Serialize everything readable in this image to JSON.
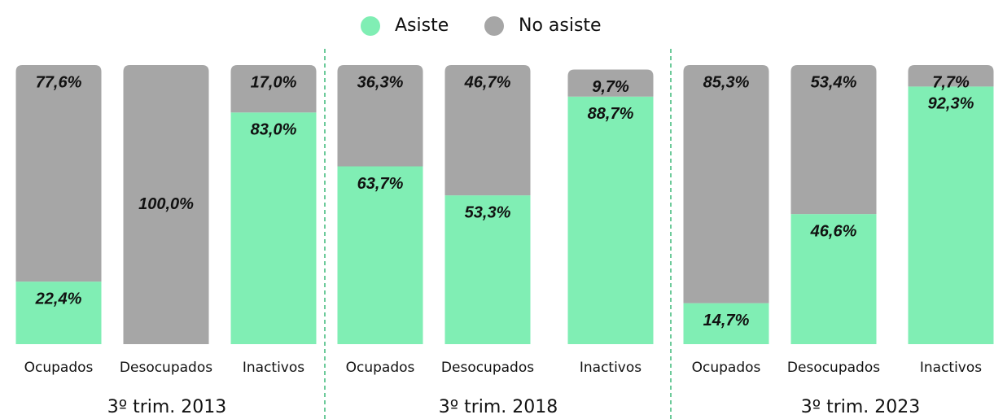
{
  "chart_data": {
    "type": "bar",
    "stacked": true,
    "categories": [
      "Ocupados",
      "Desocupados",
      "Inactivos",
      "Ocupados",
      "Desocupados",
      "Inactivos",
      "Ocupados",
      "Desocupados",
      "Inactivos"
    ],
    "groups": [
      "3º trim. 2013",
      "3º trim. 2018",
      "3º trim. 2023"
    ],
    "series": [
      {
        "name": "Asiste",
        "color": "#80eeb4",
        "values": [
          22.4,
          0,
          83.0,
          63.7,
          53.3,
          88.7,
          14.7,
          46.6,
          92.3
        ],
        "value_labels": [
          "22,4%",
          null,
          "83,0%",
          "63,7%",
          "53,3%",
          "88,7%",
          "14,7%",
          "46,6%",
          "92,3%"
        ]
      },
      {
        "name": "No asiste",
        "color": "#a6a6a6",
        "values": [
          77.6,
          100.0,
          17.0,
          36.3,
          46.7,
          9.7,
          85.3,
          53.4,
          7.7
        ],
        "value_labels": [
          "77,6%",
          "100,0%",
          "17,0%",
          "36,3%",
          "46,7%",
          "9,7%",
          "85,3%",
          "53,4%",
          "7,7%"
        ]
      }
    ],
    "ylim": [
      0,
      100
    ],
    "legend": "top"
  }
}
